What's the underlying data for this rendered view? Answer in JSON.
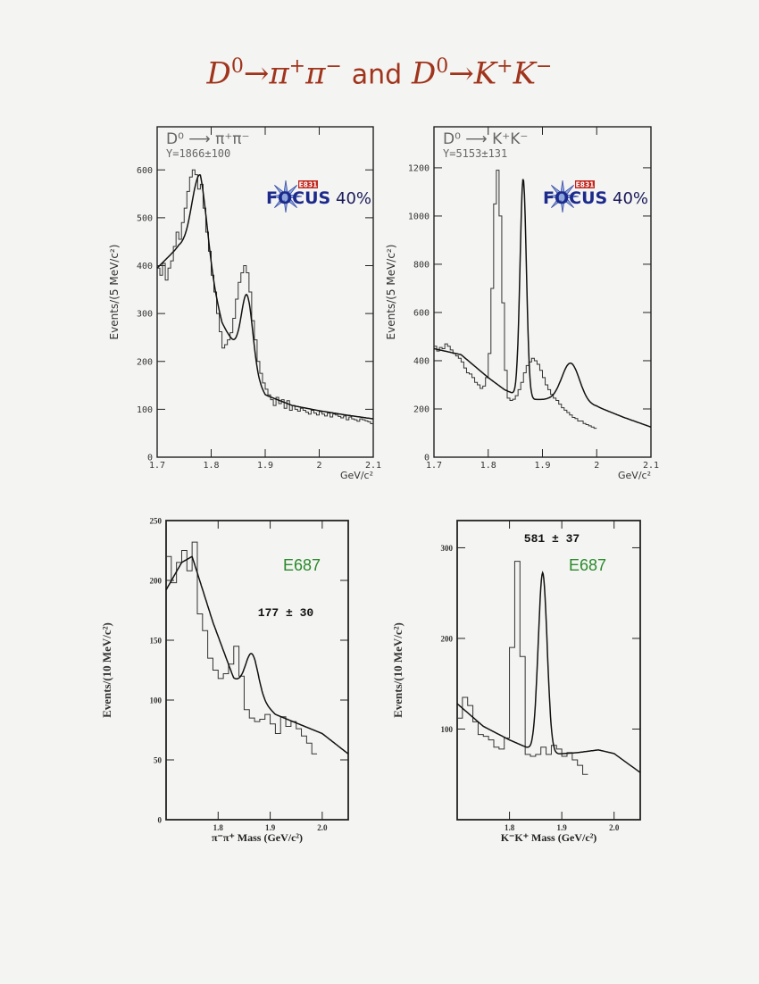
{
  "title": {
    "left_lhs": "D",
    "left_lhs_sup": "0",
    "left_arrow": "→",
    "left_p1": "π",
    "left_p1_sup": "+",
    "left_p2": "π",
    "left_p2_sup": "−",
    "conj": "and",
    "right_lhs": "D",
    "right_lhs_sup": "0",
    "right_arrow": "→",
    "right_p1": "K",
    "right_p1_sup": "+",
    "right_p2": "K",
    "right_p2_sup": "−"
  },
  "colors": {
    "title": "#a0341c",
    "e687": "#2a8a2a",
    "focus_blue": "#1c2a8c",
    "focus_red": "#c0281e"
  },
  "chart_data": [
    {
      "id": "focus-pipi",
      "type": "line",
      "decay_label": "D⁰  ⟶  π⁺π⁻",
      "yield_label": "Y=1866±100",
      "ylabel": "Events/(5 MeV/c²)",
      "xlabel": "GeV/c²",
      "logo": {
        "text": "FOCUS",
        "badge": "E831",
        "percent": "40%"
      },
      "xlim": [
        1.7,
        2.1
      ],
      "ylim": [
        0,
        690
      ],
      "x_ticks": [
        "1.7",
        "1.8",
        "1.9",
        "2",
        "2.1"
      ],
      "y_ticks": [
        "0",
        "100",
        "200",
        "300",
        "400",
        "500",
        "600"
      ],
      "hist_x0": 1.7,
      "bin_width": 0.005,
      "hist": [
        395,
        380,
        405,
        370,
        395,
        410,
        440,
        470,
        455,
        490,
        520,
        555,
        585,
        600,
        590,
        560,
        570,
        520,
        470,
        430,
        380,
        345,
        300,
        262,
        228,
        235,
        245,
        260,
        290,
        330,
        365,
        385,
        400,
        385,
        345,
        285,
        245,
        200,
        175,
        155,
        142,
        130,
        120,
        108,
        125,
        112,
        120,
        102,
        118,
        98,
        108,
        100,
        96,
        102,
        98,
        94,
        90,
        98,
        92,
        88,
        95,
        90,
        86,
        92,
        84,
        90,
        88,
        85,
        82,
        86,
        78,
        84,
        80,
        78,
        75,
        80,
        78,
        76,
        74,
        70
      ],
      "fit": {
        "bkg": [
          [
            1.7,
            395
          ],
          [
            1.74,
            440
          ],
          [
            1.78,
            450
          ],
          [
            1.82,
            280
          ],
          [
            1.86,
            200
          ],
          [
            1.9,
            130
          ],
          [
            1.95,
            108
          ],
          [
            2.0,
            97
          ],
          [
            2.05,
            88
          ],
          [
            2.1,
            80
          ]
        ],
        "peaks": [
          {
            "mu": 1.7785,
            "sigma": 0.014,
            "amp": 140
          },
          {
            "mu": 1.8665,
            "sigma": 0.0105,
            "amp": 150
          }
        ]
      }
    },
    {
      "id": "focus-kk",
      "type": "line",
      "decay_label": "D⁰  ⟶  K⁺K⁻",
      "yield_label": "Y=5153±131",
      "ylabel": "Events/(5 MeV/c²)",
      "xlabel": "GeV/c²",
      "logo": {
        "text": "FOCUS",
        "badge": "E831",
        "percent": "40%"
      },
      "xlim": [
        1.7,
        2.1
      ],
      "ylim": [
        0,
        1370
      ],
      "x_ticks": [
        "1.7",
        "1.8",
        "1.9",
        "2",
        "2.1"
      ],
      "y_ticks": [
        "0",
        "200",
        "400",
        "600",
        "800",
        "1000",
        "1200"
      ],
      "hist_x0": 1.7,
      "bin_width": 0.005,
      "hist": [
        460,
        440,
        455,
        450,
        470,
        460,
        445,
        430,
        420,
        410,
        395,
        370,
        350,
        345,
        330,
        310,
        300,
        285,
        295,
        330,
        430,
        700,
        1050,
        1190,
        1000,
        640,
        360,
        245,
        235,
        240,
        255,
        280,
        310,
        350,
        380,
        395,
        410,
        400,
        385,
        360,
        330,
        300,
        280,
        260,
        245,
        235,
        220,
        205,
        195,
        185,
        175,
        165,
        160,
        150,
        150,
        140,
        135,
        130,
        125,
        120
      ],
      "fit": {
        "bkg": [
          [
            1.7,
            450
          ],
          [
            1.75,
            425
          ],
          [
            1.8,
            330
          ],
          [
            1.83,
            280
          ],
          [
            1.87,
            240
          ],
          [
            1.91,
            238
          ],
          [
            2.0,
            210
          ],
          [
            2.05,
            165
          ],
          [
            2.1,
            125
          ]
        ],
        "peaks": [
          {
            "mu": 1.8645,
            "sigma": 0.0058,
            "amp": 910
          },
          {
            "mu": 1.952,
            "sigma": 0.0165,
            "amp": 165
          }
        ]
      }
    },
    {
      "id": "e687-pipi",
      "type": "line",
      "experiment": "E687",
      "yield_label": "177  ±  30",
      "ylabel": "Events/(10 MeV/c²)",
      "xlabel": "π⁻π⁺ Mass   (GeV/c²)",
      "xlim": [
        1.7,
        2.05
      ],
      "ylim": [
        0,
        250
      ],
      "x_ticks": [
        "1.8",
        "1.9",
        "2.0"
      ],
      "x_tick_vals": [
        1.8,
        1.9,
        2.0
      ],
      "y_ticks": [
        "0",
        "50",
        "100",
        "150",
        "200",
        "250"
      ],
      "y_tick_vals": [
        0,
        50,
        100,
        150,
        200,
        250
      ],
      "hist_x0": 1.7,
      "bin_width": 0.01,
      "hist": [
        220,
        198,
        215,
        225,
        208,
        232,
        172,
        158,
        135,
        125,
        118,
        122,
        130,
        145,
        120,
        92,
        85,
        82,
        84,
        88,
        80,
        72,
        86,
        78,
        82,
        76,
        70,
        64,
        55
      ],
      "fit": {
        "bkg": [
          [
            1.7,
            192
          ],
          [
            1.73,
            215
          ],
          [
            1.75,
            220
          ],
          [
            1.79,
            165
          ],
          [
            1.83,
            118
          ],
          [
            1.87,
            105
          ],
          [
            1.91,
            88
          ],
          [
            2.0,
            72
          ],
          [
            2.05,
            55
          ]
        ],
        "peaks": [
          {
            "mu": 1.865,
            "sigma": 0.012,
            "amp": 32
          }
        ]
      }
    },
    {
      "id": "e687-kk",
      "type": "line",
      "experiment": "E687",
      "yield_label": "581  ±  37",
      "ylabel": "Events/(10 MeV/c²)",
      "xlabel": "K⁻K⁺ Mass   (GeV/c²)",
      "xlim": [
        1.7,
        2.05
      ],
      "ylim": [
        0,
        330
      ],
      "x_ticks": [
        "1.8",
        "1.9",
        "2.0"
      ],
      "x_tick_vals": [
        1.8,
        1.9,
        2.0
      ],
      "y_ticks": [
        "100",
        "200",
        "300"
      ],
      "y_tick_vals": [
        100,
        200,
        300
      ],
      "hist_x0": 1.7,
      "bin_width": 0.01,
      "hist": [
        112,
        135,
        126,
        108,
        94,
        92,
        88,
        80,
        78,
        90,
        190,
        285,
        180,
        72,
        70,
        72,
        80,
        72,
        82,
        78,
        70,
        74,
        66,
        60,
        50
      ],
      "fit": {
        "bkg": [
          [
            1.7,
            128
          ],
          [
            1.75,
            103
          ],
          [
            1.8,
            88
          ],
          [
            1.84,
            78
          ],
          [
            1.88,
            72
          ],
          [
            1.93,
            74
          ],
          [
            1.97,
            77
          ],
          [
            2.0,
            73
          ],
          [
            2.05,
            52
          ]
        ],
        "peaks": [
          {
            "mu": 1.8635,
            "sigma": 0.0085,
            "amp": 198
          }
        ]
      }
    }
  ]
}
